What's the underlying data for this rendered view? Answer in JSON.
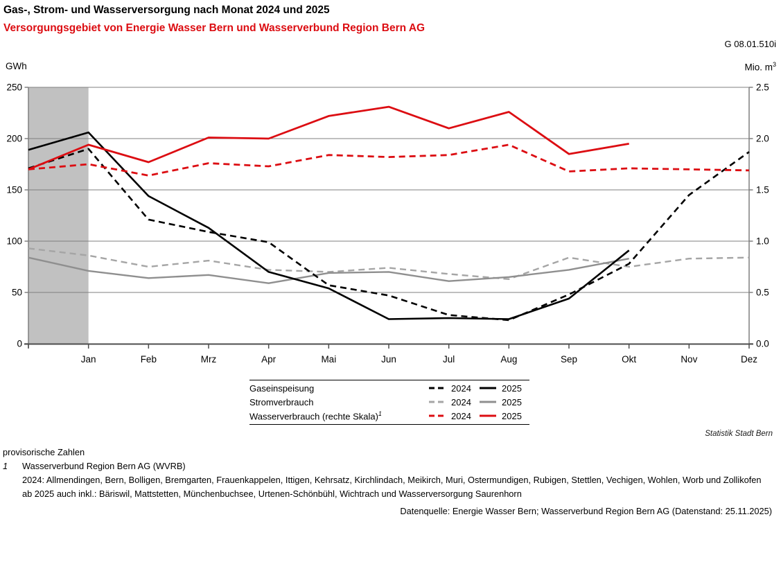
{
  "header": {
    "title": "Gas-, Strom- und Wasserversorgung nach Monat 2024 und 2025",
    "subtitle": "Versorgungsgebiet von Energie Wasser Bern und Wasserverbund Region Bern AG",
    "figure_code": "G 08.01.510i",
    "left_axis_unit": "GWh",
    "right_axis_unit_base": "Mio. m",
    "right_axis_unit_exp": "3",
    "title_color": "#000000",
    "subtitle_color": "#dc0d12"
  },
  "chart_data": {
    "type": "line",
    "x_categories": [
      "",
      "Jan",
      "Feb",
      "Mrz",
      "Apr",
      "Mai",
      "Jun",
      "Jul",
      "Aug",
      "Sep",
      "Okt",
      "Nov",
      "Dez"
    ],
    "x_note": "first unlabeled point on the y-axis is the preceding December; shaded band highlights it up to Jan",
    "left_axis": {
      "unit": "GWh",
      "min": 0,
      "max": 250,
      "tick_step": 50
    },
    "right_axis": {
      "unit": "Mio. m3",
      "min": 0,
      "max": 2.5,
      "tick_step": 0.5
    },
    "grid": "horizontal",
    "highlight_band": {
      "from_index": 0,
      "to_index": 1,
      "color": "#c1c1c1"
    },
    "colors": {
      "gas": "#000000",
      "strom_solid": "#8f8f8f",
      "strom_dashed": "#a5a5a5",
      "wasser": "#dc0d12",
      "gridline": "#7f7f7f",
      "axis": "#4d4d4d"
    },
    "series": [
      {
        "name": "Stromverbrauch 2024",
        "axis": "left",
        "style": "dashed",
        "color": "#a5a5a5",
        "width": 2.4,
        "values": [
          93,
          86,
          75,
          81,
          72,
          70,
          74,
          68,
          63,
          84,
          75,
          83,
          84
        ]
      },
      {
        "name": "Stromverbrauch 2025",
        "axis": "left",
        "style": "solid",
        "color": "#8f8f8f",
        "width": 2.4,
        "values": [
          84,
          71,
          64,
          67,
          59,
          69,
          70,
          61,
          65,
          72,
          83,
          null,
          null
        ]
      },
      {
        "name": "Gaseinspeisung 2024",
        "axis": "left",
        "style": "dashed",
        "color": "#000000",
        "width": 2.6,
        "values": [
          171,
          190,
          121,
          109,
          99,
          57,
          47,
          28,
          23,
          48,
          78,
          145,
          187
        ]
      },
      {
        "name": "Gaseinspeisung 2025",
        "axis": "left",
        "style": "solid",
        "color": "#000000",
        "width": 2.6,
        "values": [
          189,
          206,
          144,
          113,
          70,
          54,
          24,
          25,
          24,
          44,
          91,
          null,
          null
        ]
      },
      {
        "name": "Wasserverbrauch 2024",
        "axis": "right",
        "style": "dashed",
        "color": "#dc0d12",
        "width": 2.8,
        "values": [
          1.7,
          1.75,
          1.64,
          1.76,
          1.73,
          1.84,
          1.82,
          1.84,
          1.94,
          1.68,
          1.71,
          1.7,
          1.69
        ]
      },
      {
        "name": "Wasserverbrauch 2025",
        "axis": "right",
        "style": "solid",
        "color": "#dc0d12",
        "width": 2.8,
        "values": [
          1.7,
          1.94,
          1.77,
          2.01,
          2.0,
          2.22,
          2.31,
          2.1,
          2.26,
          1.85,
          1.95,
          null,
          null
        ]
      }
    ]
  },
  "legend": {
    "rows": [
      {
        "label": "Gaseinspeisung",
        "sup": "",
        "year_dashed": "2024",
        "year_solid": "2025",
        "color_dashed": "#000000",
        "color_solid": "#000000"
      },
      {
        "label": "Stromverbrauch",
        "sup": "",
        "year_dashed": "2024",
        "year_solid": "2025",
        "color_dashed": "#a5a5a5",
        "color_solid": "#8f8f8f"
      },
      {
        "label": "Wasserverbrauch (rechte Skala)",
        "sup": "1",
        "year_dashed": "2024",
        "year_solid": "2025",
        "color_dashed": "#dc0d12",
        "color_solid": "#dc0d12"
      }
    ]
  },
  "credit": "Statistik Stadt Bern",
  "footnotes": {
    "provisional": "provisorische Zahlen",
    "marker1": "1",
    "note1": "Wasserverbund Region Bern AG (WVRB)",
    "note1_line2": "2024: Allmendingen, Bern, Bolligen, Bremgarten, Frauenkappelen, Ittigen, Kehrsatz, Kirchlindach, Meikirch, Muri, Ostermundigen, Rubigen, Stettlen, Vechigen, Wohlen, Worb und Zollikofen",
    "note1_line3": "ab 2025 auch inkl.: Bäriswil, Mattstetten, Münchenbuchsee, Urtenen-Schönbühl, Wichtrach und Wasserversorgung Saurenhorn"
  },
  "source": "Datenquelle: Energie Wasser Bern; Wasserverbund Region Bern AG (Datenstand: 25.11.2025)"
}
